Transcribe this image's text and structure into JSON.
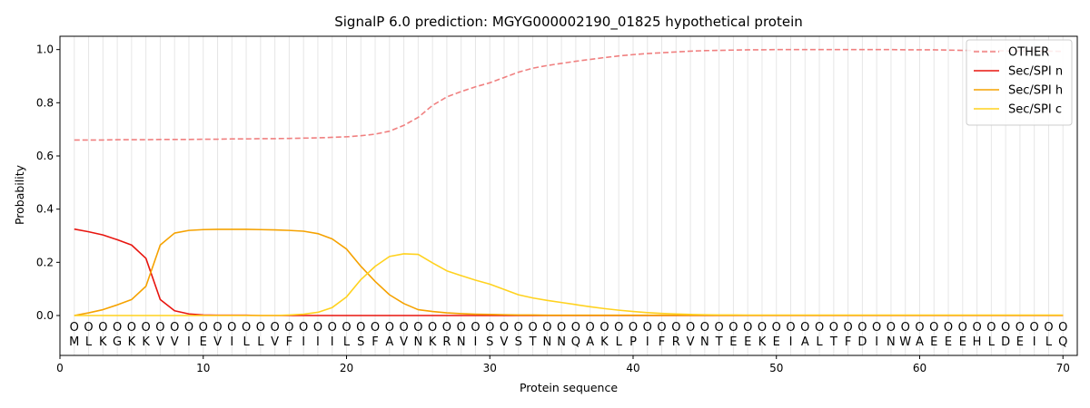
{
  "chart_data": {
    "type": "line",
    "title": "SignalP 6.0 prediction: MGYG000002190_01825 hypothetical protein",
    "xlabel": "Protein sequence",
    "ylabel": "Probability",
    "xlim": [
      0,
      71
    ],
    "ylim": [
      -0.15,
      1.05
    ],
    "x_ticks": [
      0,
      10,
      20,
      30,
      40,
      50,
      60,
      70
    ],
    "y_ticks": [
      0.0,
      0.2,
      0.4,
      0.6,
      0.8,
      1.0
    ],
    "legend_position": "top-right",
    "sequence": [
      "M",
      "L",
      "K",
      "G",
      "K",
      "K",
      "V",
      "V",
      "I",
      "E",
      "V",
      "I",
      "L",
      "L",
      "V",
      "F",
      "I",
      "I",
      "I",
      "L",
      "S",
      "F",
      "A",
      "V",
      "N",
      "K",
      "R",
      "N",
      "I",
      "S",
      "V",
      "S",
      "T",
      "N",
      "N",
      "Q",
      "A",
      "K",
      "L",
      "P",
      "I",
      "F",
      "R",
      "V",
      "N",
      "T",
      "E",
      "E",
      "K",
      "E",
      "I",
      "A",
      "L",
      "T",
      "F",
      "D",
      "I",
      "N",
      "W",
      "A",
      "E",
      "E",
      "E",
      "H",
      "L",
      "D",
      "E",
      "I",
      "L",
      "Q"
    ],
    "region_labels": [
      "O",
      "O",
      "O",
      "O",
      "O",
      "O",
      "O",
      "O",
      "O",
      "O",
      "O",
      "O",
      "O",
      "O",
      "O",
      "O",
      "O",
      "O",
      "O",
      "O",
      "O",
      "O",
      "O",
      "O",
      "O",
      "O",
      "O",
      "O",
      "O",
      "O",
      "O",
      "O",
      "O",
      "O",
      "O",
      "O",
      "O",
      "O",
      "O",
      "O",
      "O",
      "O",
      "O",
      "O",
      "O",
      "O",
      "O",
      "O",
      "O",
      "O",
      "O",
      "O",
      "O",
      "O",
      "O",
      "O",
      "O",
      "O",
      "O",
      "O",
      "O",
      "O",
      "O",
      "O",
      "O",
      "O",
      "O",
      "O",
      "O",
      "O"
    ],
    "x": [
      1,
      2,
      3,
      4,
      5,
      6,
      7,
      8,
      9,
      10,
      11,
      12,
      13,
      14,
      15,
      16,
      17,
      18,
      19,
      20,
      21,
      22,
      23,
      24,
      25,
      26,
      27,
      28,
      29,
      30,
      31,
      32,
      33,
      34,
      35,
      36,
      37,
      38,
      39,
      40,
      41,
      42,
      43,
      44,
      45,
      46,
      47,
      48,
      49,
      50,
      51,
      52,
      53,
      54,
      55,
      56,
      57,
      58,
      59,
      60,
      61,
      62,
      63,
      64,
      65,
      66,
      67,
      68,
      69,
      70
    ],
    "series": [
      {
        "name": "OTHER",
        "color": "#f08080",
        "dashed": true,
        "values": [
          0.66,
          0.66,
          0.66,
          0.661,
          0.661,
          0.661,
          0.662,
          0.662,
          0.662,
          0.663,
          0.663,
          0.664,
          0.664,
          0.665,
          0.665,
          0.666,
          0.667,
          0.668,
          0.67,
          0.672,
          0.676,
          0.682,
          0.693,
          0.715,
          0.745,
          0.79,
          0.822,
          0.842,
          0.86,
          0.875,
          0.895,
          0.915,
          0.93,
          0.94,
          0.948,
          0.956,
          0.963,
          0.97,
          0.976,
          0.981,
          0.985,
          0.988,
          0.991,
          0.994,
          0.996,
          0.997,
          0.998,
          0.999,
          0.999,
          1.0,
          1.0,
          1.0,
          1.0,
          1.0,
          1.0,
          1.0,
          1.0,
          1.0,
          0.999,
          0.999,
          0.999,
          0.998,
          0.997,
          0.996,
          0.996,
          0.995,
          0.995,
          0.994,
          0.994,
          0.993
        ]
      },
      {
        "name": "Sec/SPI n",
        "color": "#e8150f",
        "dashed": false,
        "values": [
          0.325,
          0.315,
          0.303,
          0.285,
          0.265,
          0.215,
          0.06,
          0.018,
          0.006,
          0.002,
          0.001,
          0.001,
          0.001,
          0.0,
          0.0,
          0.0,
          0.0,
          0.0,
          0.0,
          0.0,
          0.0,
          0.0,
          0.0,
          0.0,
          0.0,
          0.0,
          0.0,
          0.0,
          0.0,
          0.0,
          0.0,
          0.0,
          0.0,
          0.0,
          0.0,
          0.0,
          0.0,
          0.0,
          0.0,
          0.0,
          0.0,
          0.0,
          0.0,
          0.0,
          0.0,
          0.0,
          0.0,
          0.0,
          0.0,
          0.0,
          0.0,
          0.0,
          0.0,
          0.0,
          0.0,
          0.0,
          0.0,
          0.0,
          0.0,
          0.0,
          0.0,
          0.0,
          0.0,
          0.0,
          0.0,
          0.0,
          0.0,
          0.0,
          0.0,
          0.0
        ]
      },
      {
        "name": "Sec/SPI h",
        "color": "#f5a200",
        "dashed": false,
        "values": [
          0.0,
          0.01,
          0.022,
          0.04,
          0.06,
          0.11,
          0.265,
          0.31,
          0.32,
          0.323,
          0.324,
          0.324,
          0.324,
          0.323,
          0.322,
          0.32,
          0.317,
          0.308,
          0.288,
          0.25,
          0.185,
          0.128,
          0.078,
          0.045,
          0.022,
          0.015,
          0.01,
          0.007,
          0.005,
          0.004,
          0.003,
          0.002,
          0.002,
          0.001,
          0.001,
          0.001,
          0.001,
          0.001,
          0.001,
          0.001,
          0.001,
          0.001,
          0.001,
          0.001,
          0.001,
          0.001,
          0.001,
          0.001,
          0.001,
          0.001,
          0.001,
          0.001,
          0.001,
          0.001,
          0.001,
          0.001,
          0.001,
          0.001,
          0.001,
          0.001,
          0.001,
          0.001,
          0.001,
          0.001,
          0.001,
          0.001,
          0.001,
          0.001,
          0.001,
          0.001
        ]
      },
      {
        "name": "Sec/SPI c",
        "color": "#ffd21f",
        "dashed": false,
        "values": [
          0.0,
          0.0,
          0.0,
          0.0,
          0.0,
          0.0,
          0.0,
          0.0,
          0.0,
          0.0,
          0.0,
          0.0,
          0.0,
          0.0,
          0.0,
          0.002,
          0.005,
          0.012,
          0.03,
          0.07,
          0.135,
          0.185,
          0.222,
          0.232,
          0.23,
          0.198,
          0.168,
          0.15,
          0.133,
          0.118,
          0.098,
          0.078,
          0.066,
          0.057,
          0.049,
          0.041,
          0.033,
          0.026,
          0.02,
          0.015,
          0.011,
          0.008,
          0.006,
          0.004,
          0.003,
          0.002,
          0.002,
          0.001,
          0.001,
          0.001,
          0.001,
          0.001,
          0.001,
          0.001,
          0.001,
          0.001,
          0.001,
          0.001,
          0.001,
          0.001,
          0.001,
          0.001,
          0.001,
          0.001,
          0.001,
          0.001,
          0.001,
          0.001,
          0.001,
          0.001
        ]
      }
    ]
  }
}
